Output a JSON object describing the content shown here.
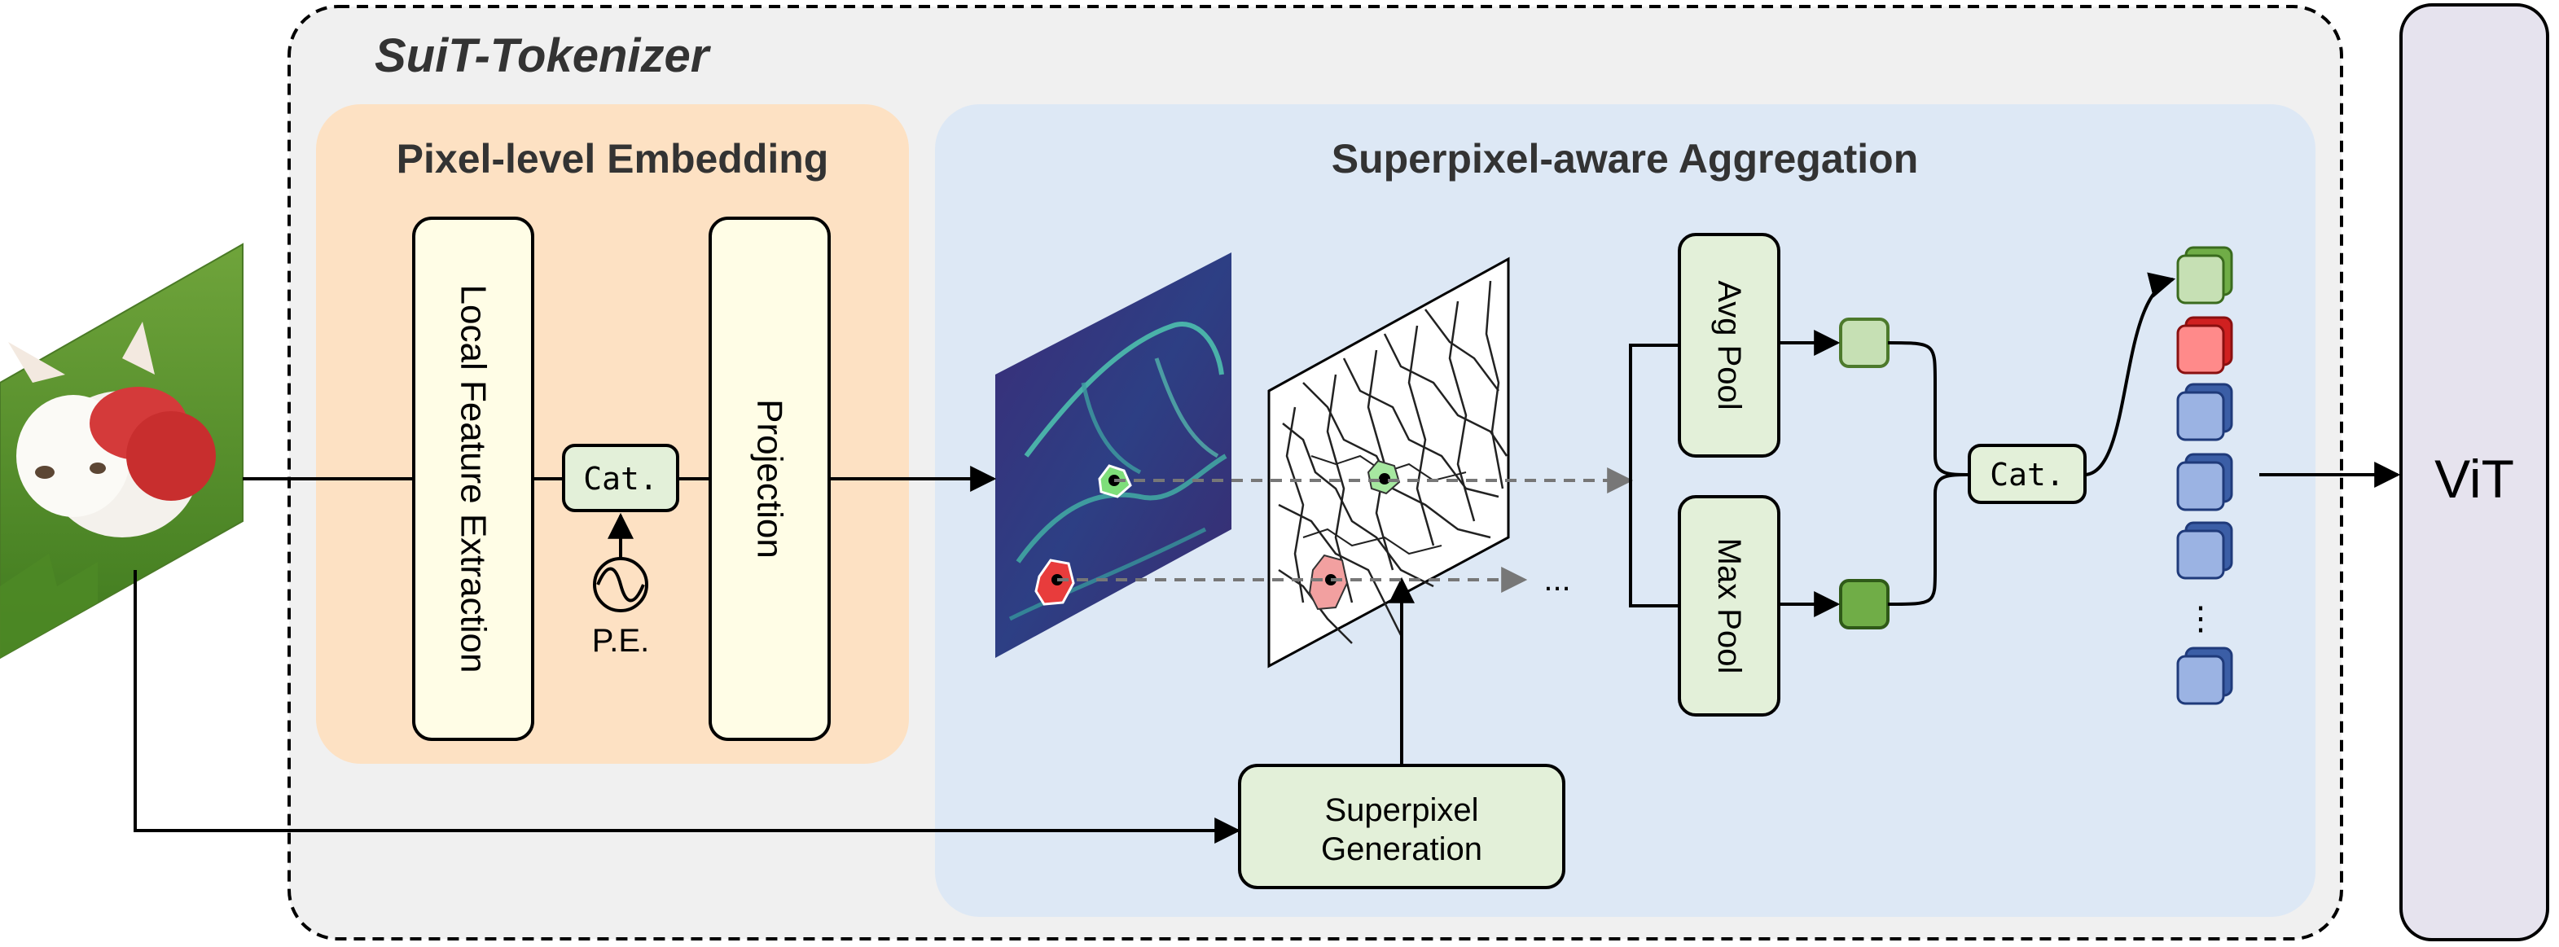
{
  "tokenizer": {
    "title": "SuiT-Tokenizer"
  },
  "pixel_embedding": {
    "title": "Pixel-level Embedding",
    "local_feature_label": "Local Feature Extraction",
    "concat_label": "Cat.",
    "pe_label": "P.E.",
    "projection_label": "Projection"
  },
  "aggregation": {
    "title": "Superpixel-aware Aggregation",
    "avg_pool_label": "Avg Pool",
    "max_pool_label": "Max Pool",
    "concat_label": "Cat.",
    "superpixel_gen_line1": "Superpixel",
    "superpixel_gen_line2": "Generation",
    "ellipsis": "...",
    "token_ellipsis": "⋮"
  },
  "vit": {
    "label": "ViT"
  },
  "colors": {
    "tokenizer_bg": "#f0f0f0",
    "pixel_panel_bg": "#fde1c3",
    "agg_panel_bg": "#dde8f5",
    "yellow_box": "#fffde6",
    "green_box": "#e3f0d9",
    "light_green_token": "#c6e0b4",
    "dark_green_token": "#70ad47",
    "red_token": "#ff8080",
    "blue_token": "#9bb3e3",
    "vit_bg": "#e6e3ee"
  }
}
